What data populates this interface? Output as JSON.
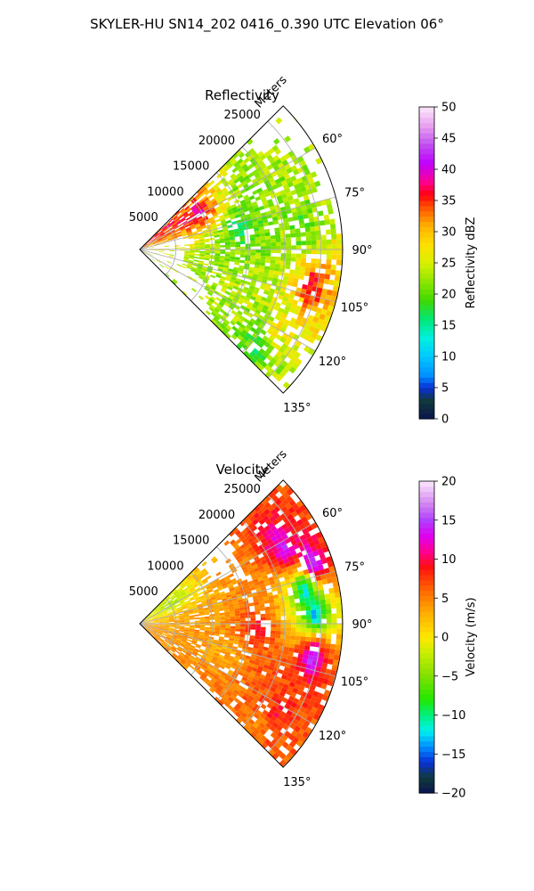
{
  "figure": {
    "suptitle": "SKYLER-HU  SN14_202  0416_0.390 UTC Elevation 06°"
  },
  "chart_data": [
    {
      "type": "heatmap",
      "projection": "polar-sector",
      "title": "Reflectivity",
      "range_axis_label": "Meters",
      "range_ticks": [
        5000,
        10000,
        15000,
        20000,
        25000
      ],
      "range_tick_labels": [
        "5000",
        "10000",
        "15000",
        "20000",
        "25000"
      ],
      "rmax": 28000,
      "azimuth_range": [
        45,
        135
      ],
      "azimuth_ticks": [
        60,
        75,
        90,
        105,
        120,
        135
      ],
      "azimuth_tick_labels": [
        "60°",
        "75°",
        "90°",
        "105°",
        "120°",
        "135°"
      ],
      "grid": true,
      "colorbar": {
        "label": "Reflectivity dBZ",
        "range": [
          0,
          50
        ],
        "ticks": [
          0,
          5,
          10,
          15,
          20,
          25,
          30,
          35,
          40,
          45,
          50
        ],
        "tick_labels": [
          "0",
          "5",
          "10",
          "15",
          "20",
          "25",
          "30",
          "35",
          "40",
          "45",
          "50"
        ]
      },
      "colormap": [
        {
          "v": 0,
          "c": "#0a1450"
        },
        {
          "v": 3,
          "c": "#103a3a"
        },
        {
          "v": 5,
          "c": "#0a2fd8"
        },
        {
          "v": 7,
          "c": "#0090ff"
        },
        {
          "v": 10,
          "c": "#00c8ff"
        },
        {
          "v": 13,
          "c": "#00f0e0"
        },
        {
          "v": 16,
          "c": "#00e878"
        },
        {
          "v": 19,
          "c": "#40d800"
        },
        {
          "v": 22,
          "c": "#8ce600"
        },
        {
          "v": 25,
          "c": "#d8f000"
        },
        {
          "v": 28,
          "c": "#ffe000"
        },
        {
          "v": 31,
          "c": "#ffb000"
        },
        {
          "v": 34,
          "c": "#ff5000"
        },
        {
          "v": 36,
          "c": "#ff0010"
        },
        {
          "v": 38,
          "c": "#ff0090"
        },
        {
          "v": 41,
          "c": "#c000ff"
        },
        {
          "v": 44,
          "c": "#c050f0"
        },
        {
          "v": 47,
          "c": "#e8a0f0"
        },
        {
          "v": 50,
          "c": "#fce8fc"
        }
      ],
      "echo_cells": [
        {
          "az": 52,
          "r": 4000,
          "value": 36
        },
        {
          "az": 58,
          "r": 9000,
          "value": 38
        },
        {
          "az": 64,
          "r": 17000,
          "value": 21
        },
        {
          "az": 72,
          "r": 21000,
          "value": 23
        },
        {
          "az": 78,
          "r": 14000,
          "value": 16
        },
        {
          "az": 82,
          "r": 22000,
          "value": 19
        },
        {
          "az": 96,
          "r": 11000,
          "value": 22
        },
        {
          "az": 101,
          "r": 24000,
          "value": 36
        },
        {
          "az": 112,
          "r": 15000,
          "value": 24
        },
        {
          "az": 118,
          "r": 22000,
          "value": 27
        },
        {
          "az": 126,
          "r": 19000,
          "value": 20
        },
        {
          "az": 132,
          "r": 21000,
          "value": 18
        }
      ]
    },
    {
      "type": "heatmap",
      "projection": "polar-sector",
      "title": "Velocity",
      "range_axis_label": "Meters",
      "range_ticks": [
        5000,
        10000,
        15000,
        20000,
        25000
      ],
      "range_tick_labels": [
        "5000",
        "10000",
        "15000",
        "20000",
        "25000"
      ],
      "rmax": 28000,
      "azimuth_range": [
        45,
        135
      ],
      "azimuth_ticks": [
        60,
        75,
        90,
        105,
        120,
        135
      ],
      "azimuth_tick_labels": [
        "60°",
        "75°",
        "90°",
        "105°",
        "120°",
        "135°"
      ],
      "grid": true,
      "colorbar": {
        "label": "Velocity (m/s)",
        "range": [
          -20,
          20
        ],
        "ticks": [
          -20,
          -15,
          -10,
          -5,
          0,
          5,
          10,
          15,
          20
        ],
        "tick_labels": [
          "−20",
          "−15",
          "−10",
          "−5",
          "0",
          "5",
          "10",
          "15",
          "20"
        ]
      },
      "colormap": [
        {
          "v": -20,
          "c": "#0a1450"
        },
        {
          "v": -18,
          "c": "#103a3a"
        },
        {
          "v": -16,
          "c": "#0a2fd8"
        },
        {
          "v": -14,
          "c": "#0090ff"
        },
        {
          "v": -12,
          "c": "#00f0f0"
        },
        {
          "v": -10,
          "c": "#00f080"
        },
        {
          "v": -8,
          "c": "#20e800"
        },
        {
          "v": -5,
          "c": "#80e000"
        },
        {
          "v": -2,
          "c": "#c8ee00"
        },
        {
          "v": 0,
          "c": "#ffe800"
        },
        {
          "v": 3,
          "c": "#ffb000"
        },
        {
          "v": 6,
          "c": "#ff6800"
        },
        {
          "v": 9,
          "c": "#ff1010"
        },
        {
          "v": 11,
          "c": "#ff0090"
        },
        {
          "v": 13,
          "c": "#e000f0"
        },
        {
          "v": 15,
          "c": "#b040ff"
        },
        {
          "v": 17,
          "c": "#d080f0"
        },
        {
          "v": 20,
          "c": "#fce8fc"
        }
      ],
      "velocity_field": [
        {
          "az": 55,
          "r": 5000,
          "value": -3
        },
        {
          "az": 62,
          "r": 22000,
          "value": 14
        },
        {
          "az": 70,
          "r": 25000,
          "value": 15
        },
        {
          "az": 78,
          "r": 23000,
          "value": -12
        },
        {
          "az": 86,
          "r": 24000,
          "value": -13
        },
        {
          "az": 84,
          "r": 10000,
          "value": 4
        },
        {
          "az": 92,
          "r": 16000,
          "value": 9
        },
        {
          "az": 100,
          "r": 24000,
          "value": 15
        },
        {
          "az": 106,
          "r": 12000,
          "value": 3
        },
        {
          "az": 114,
          "r": 20000,
          "value": 7
        },
        {
          "az": 122,
          "r": 22000,
          "value": 9
        },
        {
          "az": 130,
          "r": 21000,
          "value": 5
        }
      ]
    }
  ]
}
